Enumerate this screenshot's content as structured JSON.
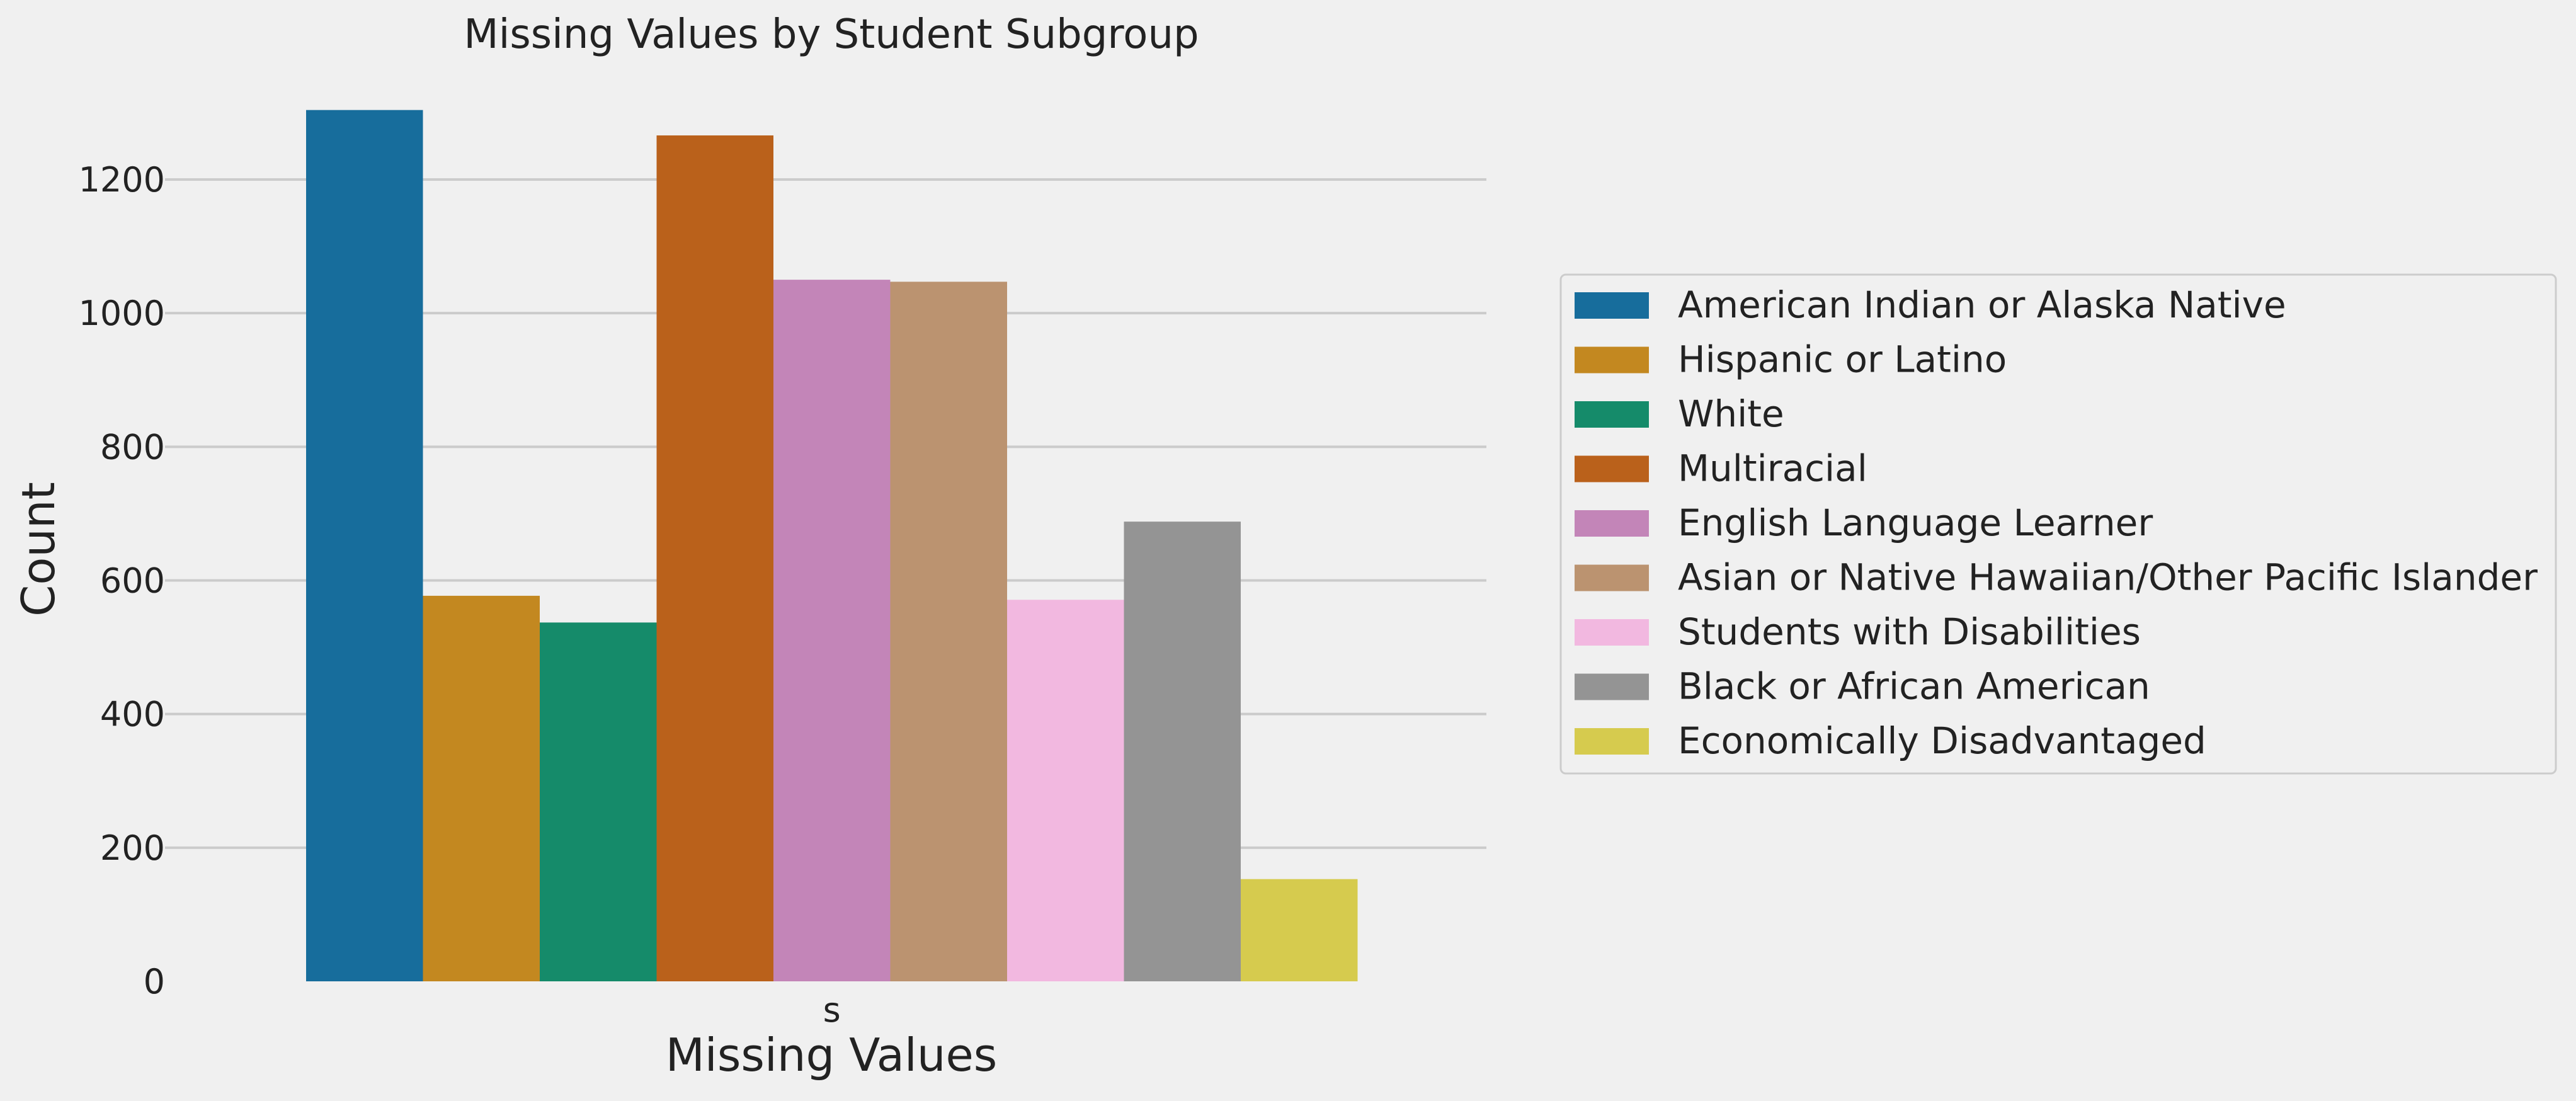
{
  "colors": {
    "background": "#f0f0f0",
    "grid": "#cbcbcb",
    "text": "#222222",
    "legend_border": "#cccccc",
    "legend_background": "#f0f0f0"
  },
  "chart_data": {
    "type": "bar",
    "title": "Missing Values by Student Subgroup",
    "xlabel": "Missing Values",
    "ylabel": "Count",
    "categories": [
      "s"
    ],
    "ylim": [
      0,
      1320
    ],
    "yticks": [
      0,
      200,
      400,
      600,
      800,
      1000,
      1200
    ],
    "grid": true,
    "legend_position": "right",
    "series": [
      {
        "name": "American Indian or Alaska Native",
        "color": "#176d9c",
        "values": [
          1304
        ]
      },
      {
        "name": "Hispanic or Latino",
        "color": "#c38820",
        "values": [
          577
        ]
      },
      {
        "name": "White",
        "color": "#158b6a",
        "values": [
          537
        ]
      },
      {
        "name": "Multiracial",
        "color": "#ba611b",
        "values": [
          1266
        ]
      },
      {
        "name": "English Language Learner",
        "color": "#c385b8",
        "values": [
          1050
        ]
      },
      {
        "name": "Asian or Native Hawaiian/Other Pacific Islander",
        "color": "#bb9370",
        "values": [
          1047
        ]
      },
      {
        "name": "Students with Disabilities",
        "color": "#f2b8e0",
        "values": [
          571
        ]
      },
      {
        "name": "Black or African American",
        "color": "#949494",
        "values": [
          688
        ]
      },
      {
        "name": "Economically Disadvantaged",
        "color": "#d6cb4e",
        "values": [
          153
        ]
      }
    ]
  }
}
